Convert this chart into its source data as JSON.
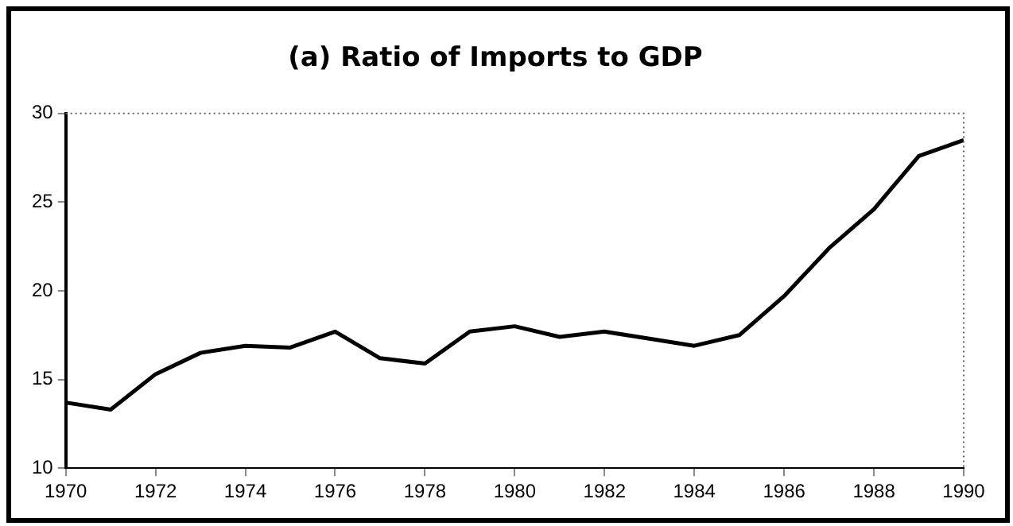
{
  "chart_data": {
    "type": "line",
    "title": "(a) Ratio of Imports to GDP",
    "x": [
      1970,
      1971,
      1972,
      1973,
      1974,
      1975,
      1976,
      1977,
      1978,
      1979,
      1980,
      1981,
      1982,
      1983,
      1984,
      1985,
      1986,
      1987,
      1988,
      1989,
      1990
    ],
    "series": [
      {
        "color": "#000000",
        "values": [
          13.7,
          13.3,
          15.3,
          16.5,
          16.9,
          16.8,
          17.7,
          16.2,
          15.9,
          17.7,
          18.0,
          17.4,
          17.7,
          17.3,
          16.9,
          17.5,
          19.7,
          22.4,
          24.6,
          27.6,
          28.5
        ]
      }
    ],
    "xlim": [
      1970,
      1990
    ],
    "xticks": [
      1970,
      1972,
      1974,
      1976,
      1978,
      1980,
      1982,
      1984,
      1986,
      1988,
      1990
    ],
    "ylim": [
      10,
      30
    ],
    "yticks": [
      10,
      15,
      20,
      25,
      30
    ],
    "grid": false,
    "legend": false,
    "marker": "none",
    "line_style": "solid"
  }
}
